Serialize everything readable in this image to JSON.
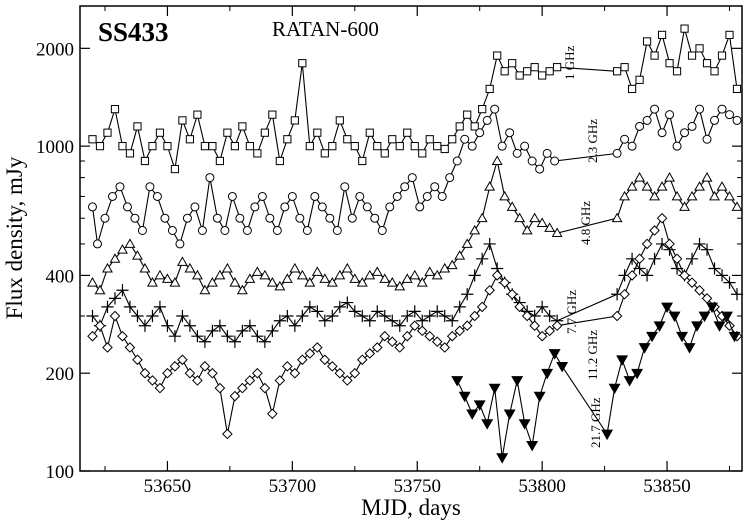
{
  "chart_data": {
    "type": "line",
    "title": "SS433",
    "subtitle": "RATAN-600",
    "xlabel": "MJD, days",
    "ylabel": "Flux density, mJy",
    "xlim": [
      53615,
      53880
    ],
    "ylim": [
      100,
      2700
    ],
    "yscale": "log",
    "x_ticks": [
      53650,
      53700,
      53750,
      53800,
      53850
    ],
    "y_ticks": [
      100,
      200,
      400,
      1000,
      2000
    ],
    "x_tick_labels": [
      "53650",
      "53700",
      "53750",
      "53800",
      "53850"
    ],
    "y_tick_labels": [
      "100",
      "200",
      "400",
      "1000",
      "2000"
    ],
    "legend": "none",
    "grid": false,
    "series": [
      {
        "name": "1 GHz",
        "marker": "square",
        "x": [
          53620,
          53623,
          53626,
          53629,
          53632,
          53635,
          53638,
          53641,
          53644,
          53647,
          53650,
          53653,
          53656,
          53659,
          53662,
          53665,
          53668,
          53671,
          53674,
          53677,
          53680,
          53683,
          53686,
          53689,
          53692,
          53695,
          53698,
          53701,
          53704,
          53707,
          53710,
          53713,
          53716,
          53719,
          53722,
          53725,
          53728,
          53731,
          53734,
          53737,
          53740,
          53743,
          53746,
          53749,
          53752,
          53755,
          53758,
          53761,
          53764,
          53767,
          53770,
          53773,
          53776,
          53779,
          53782,
          53785,
          53788,
          53791,
          53794,
          53797,
          53800,
          53803,
          53806,
          53830,
          53833,
          53836,
          53839,
          53842,
          53845,
          53848,
          53851,
          53854,
          53857,
          53860,
          53863,
          53866,
          53869,
          53872,
          53875,
          53878
        ],
        "y": [
          1050,
          1000,
          1100,
          1300,
          1000,
          950,
          1150,
          900,
          1000,
          1100,
          1000,
          850,
          1200,
          1050,
          1250,
          1000,
          1000,
          900,
          1100,
          1000,
          1150,
          1000,
          950,
          1100,
          1250,
          900,
          1050,
          1200,
          1800,
          1000,
          1100,
          950,
          1000,
          1200,
          1050,
          1000,
          900,
          1100,
          1000,
          950,
          1050,
          1000,
          1100,
          1000,
          950,
          1050,
          1000,
          980,
          1050,
          1150,
          1250,
          1150,
          1300,
          1500,
          1900,
          1700,
          1800,
          1650,
          1700,
          1750,
          1650,
          1700,
          1750,
          1700,
          1750,
          1500,
          1600,
          2100,
          1900,
          2200,
          1800,
          1700,
          2300,
          1900,
          2000,
          1800,
          1700,
          1900,
          2200,
          1500
        ]
      },
      {
        "name": "2.3 GHz",
        "marker": "circle",
        "x": [
          53620,
          53622,
          53625,
          53628,
          53631,
          53634,
          53637,
          53640,
          53643,
          53646,
          53649,
          53652,
          53655,
          53658,
          53661,
          53664,
          53667,
          53670,
          53673,
          53676,
          53679,
          53682,
          53685,
          53688,
          53691,
          53694,
          53697,
          53700,
          53703,
          53706,
          53709,
          53712,
          53715,
          53718,
          53721,
          53724,
          53727,
          53730,
          53733,
          53736,
          53739,
          53742,
          53745,
          53748,
          53751,
          53754,
          53757,
          53760,
          53763,
          53766,
          53769,
          53772,
          53775,
          53778,
          53781,
          53784,
          53787,
          53790,
          53793,
          53796,
          53799,
          53802,
          53805,
          53830,
          53833,
          53836,
          53839,
          53842,
          53845,
          53848,
          53851,
          53854,
          53857,
          53860,
          53863,
          53866,
          53869,
          53872,
          53875,
          53878
        ],
        "y": [
          650,
          500,
          600,
          700,
          750,
          650,
          600,
          550,
          750,
          700,
          600,
          550,
          500,
          600,
          650,
          550,
          800,
          600,
          550,
          700,
          600,
          550,
          650,
          700,
          600,
          550,
          650,
          700,
          600,
          550,
          700,
          650,
          600,
          550,
          750,
          600,
          700,
          650,
          600,
          550,
          650,
          700,
          750,
          800,
          650,
          700,
          750,
          700,
          800,
          900,
          1050,
          1000,
          1100,
          1200,
          1300,
          1000,
          1100,
          950,
          1000,
          900,
          850,
          950,
          900,
          950,
          1050,
          1000,
          1150,
          1200,
          1300,
          1100,
          1250,
          1000,
          1100,
          1150,
          1300,
          1050,
          1200,
          1300,
          1250,
          1200
        ]
      },
      {
        "name": "4.8 GHz",
        "marker": "triangle-up",
        "x": [
          53620,
          53623,
          53626,
          53629,
          53632,
          53635,
          53638,
          53641,
          53644,
          53647,
          53650,
          53653,
          53656,
          53659,
          53662,
          53665,
          53668,
          53671,
          53674,
          53677,
          53680,
          53683,
          53686,
          53689,
          53692,
          53695,
          53698,
          53701,
          53704,
          53707,
          53710,
          53713,
          53716,
          53719,
          53722,
          53725,
          53728,
          53731,
          53734,
          53737,
          53740,
          53743,
          53746,
          53749,
          53752,
          53755,
          53758,
          53761,
          53764,
          53767,
          53770,
          53773,
          53776,
          53779,
          53782,
          53785,
          53788,
          53791,
          53794,
          53797,
          53800,
          53803,
          53806,
          53830,
          53833,
          53836,
          53839,
          53842,
          53845,
          53848,
          53851,
          53854,
          53857,
          53860,
          53863,
          53866,
          53869,
          53872,
          53875,
          53878
        ],
        "y": [
          380,
          360,
          420,
          450,
          480,
          500,
          460,
          420,
          380,
          400,
          390,
          380,
          440,
          420,
          400,
          360,
          380,
          400,
          420,
          380,
          360,
          390,
          410,
          400,
          380,
          370,
          390,
          420,
          400,
          380,
          410,
          390,
          380,
          400,
          420,
          390,
          380,
          400,
          410,
          390,
          380,
          370,
          390,
          400,
          380,
          410,
          400,
          420,
          430,
          460,
          500,
          550,
          600,
          750,
          900,
          700,
          650,
          600,
          550,
          600,
          580,
          560,
          540,
          600,
          700,
          750,
          800,
          750,
          700,
          750,
          800,
          700,
          650,
          700,
          750,
          800,
          700,
          750,
          700,
          650
        ]
      },
      {
        "name": "7.7 GHz",
        "marker": "plus",
        "x": [
          53620,
          53623,
          53626,
          53629,
          53632,
          53635,
          53638,
          53641,
          53644,
          53647,
          53650,
          53653,
          53656,
          53659,
          53662,
          53665,
          53668,
          53671,
          53674,
          53677,
          53680,
          53683,
          53686,
          53689,
          53692,
          53695,
          53698,
          53701,
          53704,
          53707,
          53710,
          53713,
          53716,
          53719,
          53722,
          53725,
          53728,
          53731,
          53734,
          53737,
          53740,
          53743,
          53746,
          53749,
          53752,
          53755,
          53758,
          53761,
          53764,
          53767,
          53770,
          53773,
          53776,
          53779,
          53782,
          53785,
          53788,
          53791,
          53794,
          53797,
          53800,
          53803,
          53806,
          53830,
          53833,
          53836,
          53839,
          53842,
          53845,
          53848,
          53851,
          53854,
          53857,
          53860,
          53863,
          53866,
          53869,
          53872,
          53875,
          53878
        ],
        "y": [
          300,
          280,
          320,
          340,
          360,
          320,
          300,
          280,
          300,
          320,
          280,
          260,
          300,
          280,
          260,
          250,
          270,
          280,
          260,
          250,
          270,
          280,
          260,
          250,
          270,
          290,
          300,
          280,
          300,
          320,
          310,
          290,
          300,
          320,
          330,
          310,
          300,
          290,
          310,
          300,
          290,
          280,
          300,
          310,
          290,
          300,
          310,
          300,
          290,
          320,
          350,
          400,
          450,
          500,
          420,
          380,
          350,
          330,
          310,
          300,
          320,
          300,
          290,
          350,
          400,
          450,
          420,
          400,
          450,
          500,
          480,
          420,
          400,
          450,
          500,
          480,
          420,
          400,
          380,
          350
        ]
      },
      {
        "name": "11.2 GHz",
        "marker": "diamond",
        "x": [
          53620,
          53623,
          53626,
          53629,
          53632,
          53635,
          53638,
          53641,
          53644,
          53647,
          53650,
          53653,
          53656,
          53659,
          53662,
          53665,
          53668,
          53671,
          53674,
          53677,
          53680,
          53683,
          53686,
          53689,
          53692,
          53695,
          53698,
          53701,
          53704,
          53707,
          53710,
          53713,
          53716,
          53719,
          53722,
          53725,
          53728,
          53731,
          53734,
          53737,
          53740,
          53743,
          53746,
          53749,
          53752,
          53755,
          53758,
          53761,
          53764,
          53767,
          53770,
          53773,
          53776,
          53779,
          53782,
          53785,
          53788,
          53791,
          53794,
          53797,
          53800,
          53803,
          53806,
          53830,
          53833,
          53836,
          53839,
          53842,
          53845,
          53848,
          53851,
          53854,
          53857,
          53860,
          53863,
          53866,
          53869,
          53872,
          53875,
          53878
        ],
        "y": [
          260,
          280,
          240,
          300,
          260,
          240,
          220,
          200,
          190,
          180,
          200,
          210,
          220,
          200,
          190,
          210,
          200,
          180,
          130,
          170,
          180,
          190,
          200,
          180,
          150,
          190,
          210,
          200,
          220,
          230,
          240,
          220,
          210,
          200,
          190,
          200,
          220,
          230,
          240,
          260,
          250,
          240,
          260,
          280,
          270,
          260,
          250,
          240,
          260,
          270,
          280,
          300,
          320,
          360,
          400,
          380,
          350,
          320,
          300,
          280,
          260,
          270,
          280,
          300,
          350,
          400,
          450,
          500,
          550,
          600,
          500,
          450,
          400,
          380,
          360,
          340,
          320,
          300,
          280,
          260
        ]
      },
      {
        "name": "21.7 GHz",
        "marker": "triangle-down-filled",
        "x": [
          53766,
          53769,
          53772,
          53775,
          53778,
          53781,
          53784,
          53787,
          53790,
          53793,
          53796,
          53799,
          53802,
          53805,
          53808,
          53826,
          53829,
          53832,
          53835,
          53838,
          53841,
          53844,
          53847,
          53850,
          53853,
          53856,
          53859,
          53862,
          53865,
          53868,
          53871,
          53874,
          53877
        ],
        "y": [
          190,
          170,
          150,
          160,
          140,
          180,
          110,
          150,
          190,
          140,
          120,
          170,
          200,
          230,
          210,
          130,
          180,
          220,
          190,
          200,
          240,
          260,
          280,
          320,
          300,
          260,
          240,
          280,
          300,
          320,
          280,
          300,
          260
        ]
      }
    ],
    "series_labels": [
      "1 GHz",
      "2.3 GHz",
      "4.8 GHz",
      "7.7 GHz",
      "11.2 GHz",
      "21.7 GHz"
    ]
  }
}
